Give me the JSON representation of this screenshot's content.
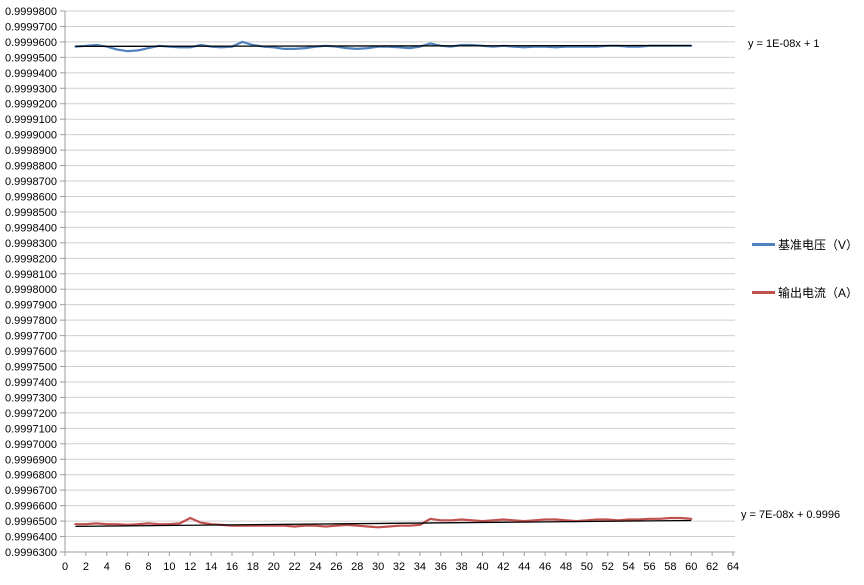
{
  "chart_data": {
    "type": "line",
    "title": "",
    "xlabel": "",
    "ylabel": "",
    "grid": true,
    "legend_position": "right",
    "x_axis": {
      "min": 0,
      "max": 64,
      "tick_step": 2,
      "tick_labels": [
        "0",
        "2",
        "4",
        "6",
        "8",
        "10",
        "12",
        "14",
        "16",
        "18",
        "20",
        "22",
        "24",
        "26",
        "28",
        "30",
        "32",
        "34",
        "36",
        "38",
        "40",
        "42",
        "44",
        "46",
        "48",
        "50",
        "52",
        "54",
        "56",
        "58",
        "60",
        "62",
        "64"
      ]
    },
    "y_axis": {
      "min": 0.99963,
      "max": 0.99998,
      "tick_step": 1e-05,
      "tick_labels": [
        "0.9999800",
        "0.9999700",
        "0.9999600",
        "0.9999500",
        "0.9999400",
        "0.9999300",
        "0.9999200",
        "0.9999100",
        "0.9999000",
        "0.9998900",
        "0.9998800",
        "0.9998700",
        "0.9998600",
        "0.9998500",
        "0.9998400",
        "0.9998300",
        "0.9998200",
        "0.9998100",
        "0.9998000",
        "0.9997900",
        "0.9997800",
        "0.9997700",
        "0.9997600",
        "0.9997500",
        "0.9997400",
        "0.9997300",
        "0.9997200",
        "0.9997100",
        "0.9997000",
        "0.9996900",
        "0.9996800",
        "0.9996700",
        "0.9996600",
        "0.9996500",
        "0.9996400",
        "0.9996300"
      ]
    },
    "x": [
      1,
      2,
      3,
      4,
      5,
      6,
      7,
      8,
      9,
      10,
      11,
      12,
      13,
      14,
      15,
      16,
      17,
      18,
      19,
      20,
      21,
      22,
      23,
      24,
      25,
      26,
      27,
      28,
      29,
      30,
      31,
      32,
      33,
      34,
      35,
      36,
      37,
      38,
      39,
      40,
      41,
      42,
      43,
      44,
      45,
      46,
      47,
      48,
      49,
      50,
      51,
      52,
      53,
      54,
      55,
      56,
      57,
      58,
      59,
      60
    ],
    "series": [
      {
        "name": "基准电压（V）",
        "color": "#4F81BD",
        "values": [
          0.999957,
          0.9999575,
          0.999958,
          0.999957,
          0.999955,
          0.999954,
          0.9999545,
          0.999956,
          0.9999575,
          0.999957,
          0.9999565,
          0.9999565,
          0.999958,
          0.999957,
          0.9999565,
          0.999957,
          0.99996,
          0.999958,
          0.999957,
          0.9999565,
          0.9999555,
          0.9999555,
          0.999956,
          0.999957,
          0.9999575,
          0.999957,
          0.999956,
          0.9999555,
          0.999956,
          0.999957,
          0.999957,
          0.9999565,
          0.999956,
          0.999957,
          0.999959,
          0.9999575,
          0.999957,
          0.999958,
          0.999958,
          0.9999575,
          0.999957,
          0.9999575,
          0.999957,
          0.9999565,
          0.999957,
          0.999957,
          0.9999565,
          0.999957,
          0.999957,
          0.999957,
          0.999957,
          0.9999575,
          0.9999575,
          0.999957,
          0.999957,
          0.9999575,
          0.9999575,
          0.9999575,
          0.9999575,
          0.9999575
        ]
      },
      {
        "name": "输出电流（A）",
        "color": "#C0504D",
        "values": [
          0.999648,
          0.999648,
          0.9996485,
          0.999648,
          0.999648,
          0.9996475,
          0.999648,
          0.9996485,
          0.999648,
          0.999648,
          0.9996485,
          0.999652,
          0.999649,
          0.999648,
          0.9996475,
          0.999647,
          0.999647,
          0.999647,
          0.999647,
          0.999647,
          0.999647,
          0.9996465,
          0.999647,
          0.999647,
          0.9996465,
          0.999647,
          0.9996475,
          0.999647,
          0.9996465,
          0.999646,
          0.9996465,
          0.999647,
          0.999647,
          0.9996475,
          0.9996515,
          0.9996505,
          0.9996505,
          0.999651,
          0.9996505,
          0.99965,
          0.9996505,
          0.999651,
          0.9996505,
          0.99965,
          0.9996505,
          0.999651,
          0.999651,
          0.9996505,
          0.99965,
          0.9996505,
          0.999651,
          0.999651,
          0.9996505,
          0.999651,
          0.999651,
          0.9996515,
          0.9996515,
          0.999652,
          0.999652,
          0.9996515
        ]
      }
    ],
    "trendlines": [
      {
        "for": "基准电压（V）",
        "equation": "y = 1E-08x + 1",
        "color": "#000000",
        "start": [
          1,
          0.9999571
        ],
        "end": [
          60,
          0.9999577
        ]
      },
      {
        "for": "输出电流（A）",
        "equation": "y = 7E-08x + 0.9996",
        "color": "#000000",
        "start": [
          1,
          0.9996466
        ],
        "end": [
          60,
          0.9996504
        ]
      }
    ]
  },
  "legend": {
    "items": [
      {
        "label": "基准电压（V）",
        "color": "#4F81BD"
      },
      {
        "label": "输出电流（A）",
        "color": "#C0504D"
      }
    ]
  },
  "annotations": {
    "trend_top": "y = 1E-08x + 1",
    "trend_bottom": "y = 7E-08x + 0.9996"
  },
  "colors": {
    "series_voltage": "#4F81BD",
    "series_current": "#C0504D",
    "trendline": "#000000",
    "gridline": "#CFCFCF",
    "axis": "#9E9E9E",
    "tick_text": "#000000",
    "background": "#FFFFFF"
  }
}
